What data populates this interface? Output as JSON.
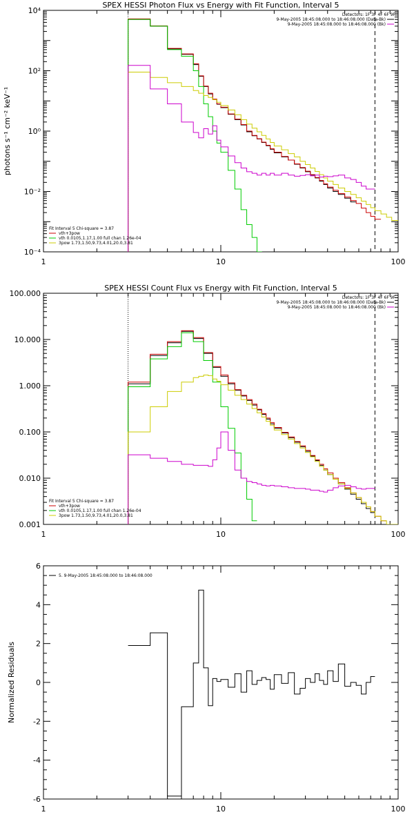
{
  "chart_data": [
    {
      "type": "line",
      "title": "SPEX HESSI Photon Flux vs Energy with Fit Function, Interval 5",
      "ylabel": "photons s⁻¹ cm⁻² keV⁻¹",
      "xlabel": "",
      "xscale": "log",
      "yscale": "log",
      "xlim": [
        1,
        100
      ],
      "ylim": [
        0.0001,
        10000
      ],
      "xticks": [
        1,
        10,
        100
      ],
      "xtick_labels": [
        "1",
        "10",
        "100"
      ],
      "yticks": [
        0.0001,
        0.01,
        1,
        100,
        10000
      ],
      "ytick_labels": [
        "10⁻⁴",
        "10⁻²",
        "10⁰",
        "10²",
        "10⁴"
      ],
      "detectors_text": "Detectors: 1F 3F 4F 6F 9F",
      "top_legend": [
        {
          "text": "9-May-2005 18:45:08.000 to 18:46:08.000 (Data-Bk)",
          "color": "#000000"
        },
        {
          "text": "9-May-2005 18:45:08.000 to 18:46:08.000 (Bk)",
          "color": "#cc00cc"
        }
      ],
      "fit_legend": {
        "header": "Fit Interval 5   Chi-square = 3.87",
        "items": [
          {
            "text": "vth+3pow",
            "color": "#cc0000"
          },
          {
            "text": "vth 0.0105,1.17,1.00  full chan 1.26e-04",
            "color": "#00cc00"
          },
          {
            "text": "3pow 1.73,1.50,9.73,4.01,20.0,3.81",
            "color": "#cccc00"
          }
        ]
      },
      "vlines": [
        {
          "x": 3.0,
          "style": "dotted"
        },
        {
          "x": 74.0,
          "style": "dashed"
        }
      ],
      "edges": [
        3.0,
        4.0,
        5.0,
        6.0,
        7.0,
        7.5,
        8.0,
        8.5,
        9.0,
        9.5,
        10.0,
        11.0,
        12.0,
        13.0,
        14.0,
        15.0,
        16.0,
        17.0,
        18.0,
        19.0,
        20.0,
        22.0,
        24.0,
        26.0,
        28.0,
        30.0,
        32.0,
        34.0,
        36.0,
        38.0,
        40.0,
        43.0,
        46.0,
        50.0,
        54.0,
        58.0,
        62.0,
        66.0,
        70.0,
        74.0,
        80.0,
        86.0,
        92.0,
        100.0
      ],
      "series": [
        {
          "name": "9-May-2005 18:45:08.000 to 18:46:08.000 (Data-Bk)",
          "color": "#000000",
          "start": 0,
          "values": [
            5000,
            3000,
            530,
            350,
            160,
            65,
            30,
            17,
            11,
            7.8,
            6.0,
            3.6,
            2.4,
            1.6,
            0.95,
            0.7,
            0.55,
            0.42,
            0.33,
            0.25,
            0.19,
            0.14,
            0.11,
            0.08,
            0.06,
            0.045,
            0.035,
            0.028,
            0.022,
            0.017,
            0.013,
            0.01,
            0.008,
            0.006,
            0.0045
          ]
        },
        {
          "name": "vth+3pow",
          "color": "#cc0000",
          "start": 0,
          "values": [
            5200,
            3050,
            550,
            360,
            170,
            68,
            31,
            18,
            11.5,
            8.0,
            6.2,
            3.7,
            2.5,
            1.65,
            1.0,
            0.72,
            0.56,
            0.43,
            0.34,
            0.26,
            0.2,
            0.145,
            0.11,
            0.082,
            0.062,
            0.047,
            0.036,
            0.029,
            0.023,
            0.018,
            0.014,
            0.011,
            0.0085,
            0.0065,
            0.005,
            0.004,
            0.0028,
            0.002,
            0.0015,
            0.0012
          ]
        },
        {
          "name": "vth",
          "color": "#00cc00",
          "start": 0,
          "values": [
            5000,
            3000,
            500,
            300,
            100,
            30,
            8,
            3,
            1.0,
            0.4,
            0.2,
            0.05,
            0.012,
            0.0025,
            0.0008,
            0.0003,
            0.0001,
            4e-05
          ]
        },
        {
          "name": "3pow",
          "color": "#cccc00",
          "start": 0,
          "values": [
            90,
            60,
            40,
            30,
            22,
            18,
            15,
            13,
            11,
            9,
            7,
            5,
            3.5,
            2.4,
            1.7,
            1.25,
            0.95,
            0.72,
            0.55,
            0.42,
            0.32,
            0.24,
            0.18,
            0.14,
            0.1,
            0.078,
            0.06,
            0.046,
            0.036,
            0.028,
            0.022,
            0.017,
            0.013,
            0.01,
            0.008,
            0.0062,
            0.0048,
            0.0037,
            0.0029,
            0.0023,
            0.0018,
            0.0014,
            0.0011
          ]
        },
        {
          "name": "9-May-2005 18:45:08.000 to 18:46:08.000 (Bk)",
          "color": "#cc00cc",
          "start": 0,
          "values": [
            150,
            25,
            8,
            2.0,
            0.9,
            0.6,
            1.2,
            0.8,
            1.5,
            0.5,
            0.3,
            0.15,
            0.09,
            0.06,
            0.045,
            0.04,
            0.035,
            0.04,
            0.035,
            0.04,
            0.035,
            0.04,
            0.035,
            0.032,
            0.034,
            0.036,
            0.033,
            0.035,
            0.03,
            0.032,
            0.031,
            0.033,
            0.035,
            0.028,
            0.025,
            0.02,
            0.015,
            0.012,
            0.012
          ]
        }
      ]
    },
    {
      "type": "line",
      "title": "SPEX HESSI Count Flux vs Energy with Fit Function, Interval 5",
      "ylabel": "",
      "xlabel": "",
      "xscale": "log",
      "yscale": "log",
      "xlim": [
        1,
        100
      ],
      "ylim": [
        0.001,
        100
      ],
      "xticks": [
        1,
        10,
        100
      ],
      "xtick_labels": [
        "1",
        "10",
        "100"
      ],
      "yticks": [
        0.001,
        0.01,
        0.1,
        1,
        10,
        100
      ],
      "ytick_labels": [
        "0.001",
        "0.010",
        "0.100",
        "1.000",
        "10.000",
        "100.000"
      ],
      "detectors_text": "Detectors: 1F 3F 4F 6F 9F",
      "top_legend": [
        {
          "text": "9-May-2005 18:45:08.000 to 18:46:08.000 (Data-Bk)",
          "color": "#000000"
        },
        {
          "text": "9-May-2005 18:45:08.000 to 18:46:08.000 (Bk)",
          "color": "#cc00cc"
        }
      ],
      "fit_legend": {
        "header": "Fit Interval 5   Chi-square = 3.87",
        "items": [
          {
            "text": "vth+3pow",
            "color": "#cc0000"
          },
          {
            "text": "vth 0.0105,1.17,1.00  full chan 1.26e-04",
            "color": "#00cc00"
          },
          {
            "text": "3pow 1.73,1.50,9.73,4.01,20.0,3.81",
            "color": "#cccc00"
          }
        ]
      },
      "vlines": [
        {
          "x": 3.0,
          "style": "dotted"
        },
        {
          "x": 74.0,
          "style": "dashed"
        }
      ],
      "edges": [
        3.0,
        4.0,
        5.0,
        6.0,
        7.0,
        7.5,
        8.0,
        8.5,
        9.0,
        9.5,
        10.0,
        11.0,
        12.0,
        13.0,
        14.0,
        15.0,
        16.0,
        17.0,
        18.0,
        19.0,
        20.0,
        22.0,
        24.0,
        26.0,
        28.0,
        30.0,
        32.0,
        34.0,
        36.0,
        38.0,
        40.0,
        43.0,
        46.0,
        50.0,
        54.0,
        58.0,
        62.0,
        66.0,
        70.0,
        74.0,
        80.0,
        86.0,
        92.0,
        100.0
      ],
      "series": [
        {
          "name": "9-May-2005 18:45:08.000 to 18:46:08.000 (Data-Bk)",
          "color": "#000000",
          "start": 0,
          "values": [
            1.1,
            4.5,
            8.5,
            15,
            10.5,
            10.5,
            5.0,
            5.0,
            2.5,
            2.5,
            1.6,
            1.1,
            0.8,
            0.6,
            0.48,
            0.38,
            0.3,
            0.24,
            0.19,
            0.15,
            0.12,
            0.095,
            0.075,
            0.06,
            0.048,
            0.038,
            0.03,
            0.024,
            0.019,
            0.015,
            0.012,
            0.0095,
            0.0075,
            0.0058,
            0.0045,
            0.0035,
            0.0028,
            0.0022,
            0.0018
          ]
        },
        {
          "name": "vth+3pow",
          "color": "#cc0000",
          "start": 0,
          "values": [
            1.2,
            4.8,
            9.0,
            15.5,
            11.0,
            11.0,
            5.2,
            5.2,
            2.6,
            2.6,
            1.7,
            1.15,
            0.82,
            0.62,
            0.5,
            0.4,
            0.31,
            0.25,
            0.2,
            0.16,
            0.125,
            0.098,
            0.078,
            0.062,
            0.05,
            0.04,
            0.031,
            0.025,
            0.02,
            0.016,
            0.013,
            0.01,
            0.008,
            0.0062,
            0.0048,
            0.0038,
            0.003,
            0.0024,
            0.0019,
            0.0015,
            0.0012
          ]
        },
        {
          "name": "vth",
          "color": "#00cc00",
          "start": 0,
          "values": [
            0.95,
            3.8,
            7.0,
            14.0,
            9.0,
            9.0,
            3.5,
            3.5,
            1.2,
            1.2,
            0.35,
            0.12,
            0.035,
            0.01,
            0.0035,
            0.0012
          ]
        },
        {
          "name": "3pow",
          "color": "#cccc00",
          "start": 0,
          "values": [
            0.1,
            0.35,
            0.75,
            1.2,
            1.5,
            1.6,
            1.7,
            1.65,
            1.4,
            1.25,
            1.05,
            0.8,
            0.62,
            0.5,
            0.4,
            0.32,
            0.26,
            0.21,
            0.17,
            0.14,
            0.11,
            0.088,
            0.07,
            0.056,
            0.045,
            0.036,
            0.029,
            0.023,
            0.018,
            0.015,
            0.012,
            0.0095,
            0.0075,
            0.006,
            0.0048,
            0.0038,
            0.003,
            0.0024,
            0.0019,
            0.0015,
            0.0012,
            0.001,
            0.001
          ]
        },
        {
          "name": "9-May-2005 18:45:08.000 to 18:46:08.000 (Bk)",
          "color": "#cc00cc",
          "start": 0,
          "values": [
            0.032,
            0.027,
            0.023,
            0.02,
            0.019,
            0.019,
            0.019,
            0.018,
            0.025,
            0.045,
            0.1,
            0.04,
            0.015,
            0.01,
            0.0085,
            0.008,
            0.0075,
            0.007,
            0.0068,
            0.007,
            0.0068,
            0.0065,
            0.0062,
            0.006,
            0.006,
            0.0058,
            0.0055,
            0.0055,
            0.0052,
            0.005,
            0.0055,
            0.0062,
            0.0068,
            0.007,
            0.0065,
            0.006,
            0.0058,
            0.006,
            0.006
          ]
        }
      ]
    },
    {
      "type": "line",
      "title": "",
      "ylabel": "Normalized Residuals",
      "xlabel": "",
      "xscale": "log",
      "yscale": "linear",
      "xlim": [
        1,
        100
      ],
      "ylim": [
        -6,
        6
      ],
      "xticks": [
        1,
        10,
        100
      ],
      "xtick_labels": [
        "1",
        "10",
        "100"
      ],
      "yticks": [
        -6,
        -4,
        -2,
        0,
        2,
        4,
        6
      ],
      "ytick_labels": [
        "-6",
        "-4",
        "-2",
        "0",
        "2",
        "4",
        "6"
      ],
      "top_legend": [
        {
          "text": "5. 9-May-2005 18:45:08.000 to 18:46:08.000",
          "color": "#000000"
        }
      ],
      "edges": [
        3.0,
        4.0,
        5.0,
        6.0,
        7.0,
        7.5,
        8.0,
        8.5,
        9.0,
        9.5,
        10.0,
        11.0,
        12.0,
        13.0,
        14.0,
        15.0,
        16.0,
        17.0,
        18.0,
        19.0,
        20.0,
        22.0,
        24.0,
        26.0,
        28.0,
        30.0,
        32.0,
        34.0,
        36.0,
        38.0,
        40.0,
        43.0,
        46.0,
        50.0,
        54.0,
        58.0,
        62.0,
        66.0,
        70.0,
        74.0
      ],
      "series": [
        {
          "name": "5. 9-May-2005 18:45:08.000 to 18:46:08.000",
          "color": "#000000",
          "start": 0,
          "values": [
            1.9,
            2.55,
            -5.85,
            -1.25,
            1.0,
            4.75,
            0.75,
            -1.2,
            0.2,
            0.05,
            0.15,
            -0.25,
            0.45,
            -0.5,
            0.6,
            -0.1,
            0.1,
            0.25,
            0.15,
            -0.35,
            0.4,
            -0.05,
            0.5,
            -0.6,
            -0.3,
            0.2,
            0.0,
            0.45,
            0.1,
            -0.1,
            0.6,
            0.05,
            0.95,
            -0.2,
            0.0,
            -0.15,
            -0.6,
            0.0,
            0.3
          ]
        }
      ]
    }
  ]
}
